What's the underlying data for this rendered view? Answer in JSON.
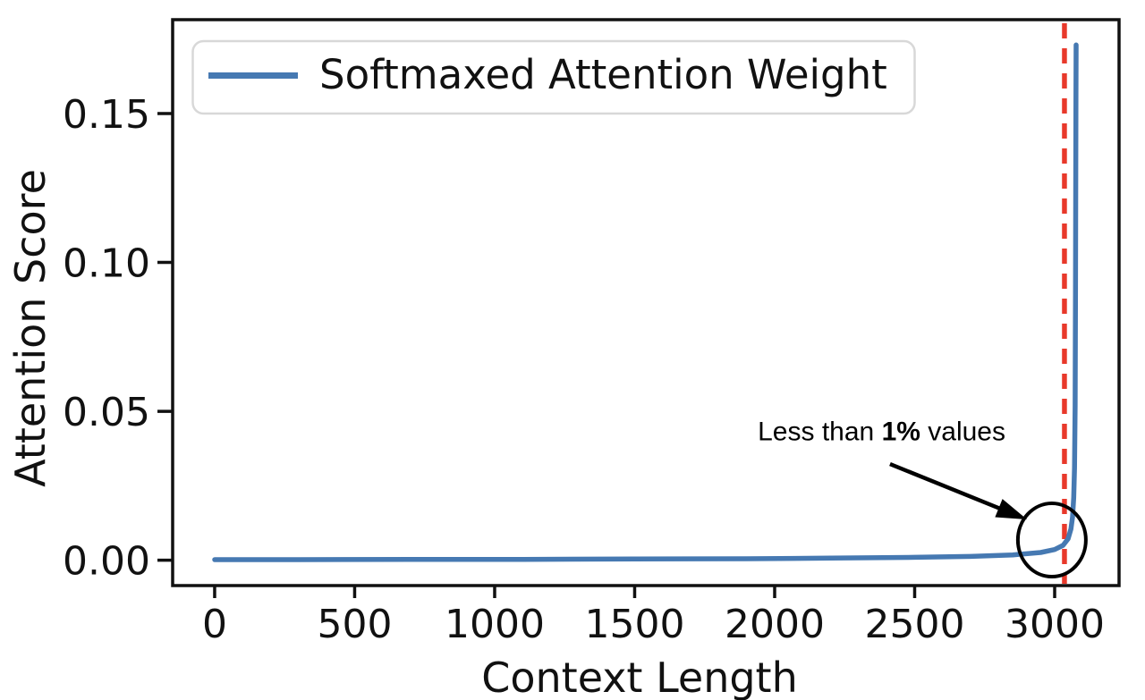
{
  "chart_data": {
    "type": "line",
    "title": "",
    "xlabel": "Context Length",
    "ylabel": "Attention Score",
    "xlim": [
      -150,
      3230
    ],
    "ylim": [
      -0.0085,
      0.1815
    ],
    "grid": false,
    "x_ticks": [
      0,
      500,
      1000,
      1500,
      2000,
      2500,
      3000
    ],
    "y_ticks": {
      "values": [
        0,
        0.05,
        0.1,
        0.15
      ],
      "labels": [
        "0.00",
        "0.05",
        "0.10",
        "0.15"
      ]
    },
    "legend": {
      "position": "upper left",
      "entries": [
        {
          "label": "Softmaxed Attention Weight",
          "color": "#4679b2"
        }
      ]
    },
    "series": [
      {
        "name": "Softmaxed Attention Weight",
        "color": "#4679b2",
        "points": [
          [
            0,
            0.0002
          ],
          [
            300,
            0.0002
          ],
          [
            700,
            0.00025
          ],
          [
            1100,
            0.0003
          ],
          [
            1500,
            0.0004
          ],
          [
            1900,
            0.0005
          ],
          [
            2200,
            0.0007
          ],
          [
            2500,
            0.001
          ],
          [
            2700,
            0.0013
          ],
          [
            2850,
            0.0018
          ],
          [
            2950,
            0.0026
          ],
          [
            3000,
            0.0036
          ],
          [
            3030,
            0.005
          ],
          [
            3048,
            0.0072
          ],
          [
            3058,
            0.0105
          ],
          [
            3064,
            0.0145
          ],
          [
            3068,
            0.021
          ],
          [
            3071,
            0.031
          ],
          [
            3073,
            0.052
          ],
          [
            3074.5,
            0.09
          ],
          [
            3075.5,
            0.13
          ],
          [
            3076,
            0.155
          ],
          [
            3076.5,
            0.173
          ]
        ]
      }
    ],
    "vline": {
      "x": 3035,
      "color": "#e8392b",
      "style": "dashed"
    },
    "annotation": {
      "text_parts": [
        "Less than ",
        "1%",
        " values"
      ],
      "text_pos": [
        2382,
        0.043
      ],
      "arrow_from": [
        2412,
        0.0323
      ],
      "arrow_to": [
        2901,
        0.0137
      ],
      "circle_center": [
        2990,
        0.0068
      ],
      "circle_radius_px": [
        38,
        41
      ],
      "color": "#000000"
    }
  }
}
